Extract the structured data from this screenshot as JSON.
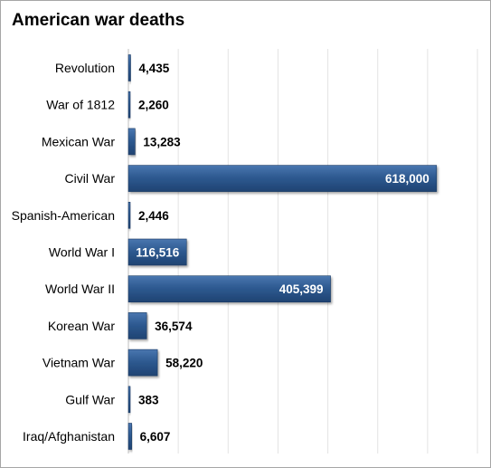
{
  "chart_data": {
    "type": "bar",
    "orientation": "horizontal",
    "title": "American war deaths",
    "categories": [
      "Revolution",
      "War of 1812",
      "Mexican War",
      "Civil War",
      "Spanish-American",
      "World War I",
      "World War II",
      "Korean War",
      "Vietnam War",
      "Gulf War",
      "Iraq/Afghanistan"
    ],
    "values": [
      4435,
      2260,
      13283,
      618000,
      2446,
      116516,
      405399,
      36574,
      58220,
      383,
      6607
    ],
    "value_labels": [
      "4,435",
      "2,260",
      "13,283",
      "618,000",
      "2,446",
      "116,516",
      "405,399",
      "36,574",
      "58,220",
      "383",
      "6,607"
    ],
    "xlim": [
      0,
      700000
    ],
    "xlabel": "",
    "ylabel": "",
    "grid": "vertical",
    "legend": "none",
    "bar_color": "#2e5a91"
  }
}
